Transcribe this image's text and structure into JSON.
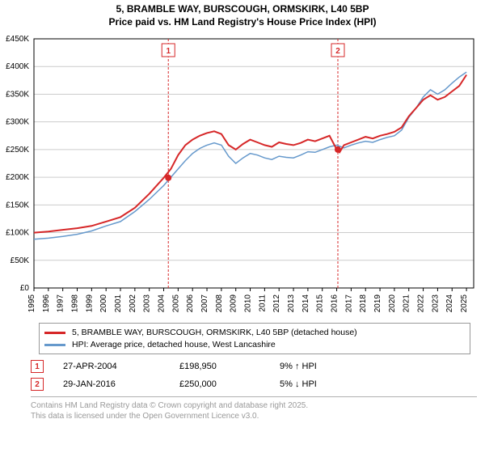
{
  "title1": "5, BRAMBLE WAY, BURSCOUGH, ORMSKIRK, L40 5BP",
  "title2": "Price paid vs. HM Land Registry's House Price Index (HPI)",
  "chart": {
    "type": "line",
    "background_color": "#ffffff",
    "grid_color": "#cccccc",
    "xlim": [
      1995,
      2025.5
    ],
    "ylim": [
      0,
      450000
    ],
    "ytick_step": 50000,
    "yticks": [
      "£0",
      "£50K",
      "£100K",
      "£150K",
      "£200K",
      "£250K",
      "£300K",
      "£350K",
      "£400K",
      "£450K"
    ],
    "xticks": [
      "1995",
      "1996",
      "1997",
      "1998",
      "1999",
      "2000",
      "2001",
      "2002",
      "2003",
      "2004",
      "2005",
      "2006",
      "2007",
      "2008",
      "2009",
      "2010",
      "2011",
      "2012",
      "2013",
      "2014",
      "2015",
      "2016",
      "2017",
      "2018",
      "2019",
      "2020",
      "2021",
      "2022",
      "2023",
      "2024",
      "2025"
    ],
    "label_fontsize": 10,
    "series": [
      {
        "name": "red",
        "color": "#d62728",
        "width": 2,
        "points": [
          [
            1995,
            100000
          ],
          [
            1996,
            102000
          ],
          [
            1997,
            105000
          ],
          [
            1998,
            108000
          ],
          [
            1999,
            112000
          ],
          [
            2000,
            120000
          ],
          [
            2001,
            128000
          ],
          [
            2002,
            145000
          ],
          [
            2003,
            170000
          ],
          [
            2004,
            198950
          ],
          [
            2004.5,
            215000
          ],
          [
            2005,
            240000
          ],
          [
            2005.5,
            258000
          ],
          [
            2006,
            268000
          ],
          [
            2006.5,
            275000
          ],
          [
            2007,
            280000
          ],
          [
            2007.5,
            283000
          ],
          [
            2008,
            278000
          ],
          [
            2008.5,
            258000
          ],
          [
            2009,
            250000
          ],
          [
            2009.5,
            260000
          ],
          [
            2010,
            268000
          ],
          [
            2010.5,
            263000
          ],
          [
            2011,
            258000
          ],
          [
            2011.5,
            255000
          ],
          [
            2012,
            263000
          ],
          [
            2012.5,
            260000
          ],
          [
            2013,
            258000
          ],
          [
            2013.5,
            262000
          ],
          [
            2014,
            268000
          ],
          [
            2014.5,
            265000
          ],
          [
            2015,
            270000
          ],
          [
            2015.5,
            275000
          ],
          [
            2016,
            250000
          ],
          [
            2016.2,
            245000
          ],
          [
            2016.5,
            258000
          ],
          [
            2017,
            263000
          ],
          [
            2017.5,
            268000
          ],
          [
            2018,
            273000
          ],
          [
            2018.5,
            270000
          ],
          [
            2019,
            275000
          ],
          [
            2019.5,
            278000
          ],
          [
            2020,
            282000
          ],
          [
            2020.5,
            290000
          ],
          [
            2021,
            310000
          ],
          [
            2021.5,
            325000
          ],
          [
            2022,
            340000
          ],
          [
            2022.5,
            348000
          ],
          [
            2023,
            340000
          ],
          [
            2023.5,
            345000
          ],
          [
            2024,
            355000
          ],
          [
            2024.5,
            365000
          ],
          [
            2025,
            385000
          ]
        ]
      },
      {
        "name": "blue",
        "color": "#6699cc",
        "width": 1.5,
        "points": [
          [
            1995,
            88000
          ],
          [
            1996,
            90000
          ],
          [
            1997,
            93000
          ],
          [
            1998,
            97000
          ],
          [
            1999,
            103000
          ],
          [
            2000,
            112000
          ],
          [
            2001,
            120000
          ],
          [
            2002,
            138000
          ],
          [
            2003,
            160000
          ],
          [
            2004,
            185000
          ],
          [
            2005,
            215000
          ],
          [
            2005.5,
            230000
          ],
          [
            2006,
            243000
          ],
          [
            2006.5,
            252000
          ],
          [
            2007,
            258000
          ],
          [
            2007.5,
            262000
          ],
          [
            2008,
            258000
          ],
          [
            2008.5,
            238000
          ],
          [
            2009,
            225000
          ],
          [
            2009.5,
            235000
          ],
          [
            2010,
            243000
          ],
          [
            2010.5,
            240000
          ],
          [
            2011,
            235000
          ],
          [
            2011.5,
            232000
          ],
          [
            2012,
            238000
          ],
          [
            2012.5,
            236000
          ],
          [
            2013,
            235000
          ],
          [
            2013.5,
            240000
          ],
          [
            2014,
            246000
          ],
          [
            2014.5,
            245000
          ],
          [
            2015,
            250000
          ],
          [
            2015.5,
            255000
          ],
          [
            2016,
            258000
          ],
          [
            2016.5,
            253000
          ],
          [
            2017,
            258000
          ],
          [
            2017.5,
            262000
          ],
          [
            2018,
            265000
          ],
          [
            2018.5,
            263000
          ],
          [
            2019,
            268000
          ],
          [
            2019.5,
            272000
          ],
          [
            2020,
            275000
          ],
          [
            2020.5,
            285000
          ],
          [
            2021,
            308000
          ],
          [
            2021.5,
            325000
          ],
          [
            2022,
            345000
          ],
          [
            2022.5,
            358000
          ],
          [
            2023,
            350000
          ],
          [
            2023.5,
            358000
          ],
          [
            2024,
            370000
          ],
          [
            2024.5,
            381000
          ],
          [
            2025,
            390000
          ]
        ]
      }
    ],
    "markers": [
      {
        "n": "1",
        "x": 2004.32,
        "y": 198950
      },
      {
        "n": "2",
        "x": 2016.08,
        "y": 250000
      }
    ]
  },
  "legend": {
    "red_color": "#d62728",
    "red_label": "5, BRAMBLE WAY, BURSCOUGH, ORMSKIRK, L40 5BP (detached house)",
    "blue_color": "#6699cc",
    "blue_label": "HPI: Average price, detached house, West Lancashire"
  },
  "events": [
    {
      "n": "1",
      "date": "27-APR-2004",
      "price": "£198,950",
      "diff": "9% ↑ HPI"
    },
    {
      "n": "2",
      "date": "29-JAN-2016",
      "price": "£250,000",
      "diff": "5% ↓ HPI"
    }
  ],
  "footer1": "Contains HM Land Registry data © Crown copyright and database right 2025.",
  "footer2": "This data is licensed under the Open Government Licence v3.0."
}
